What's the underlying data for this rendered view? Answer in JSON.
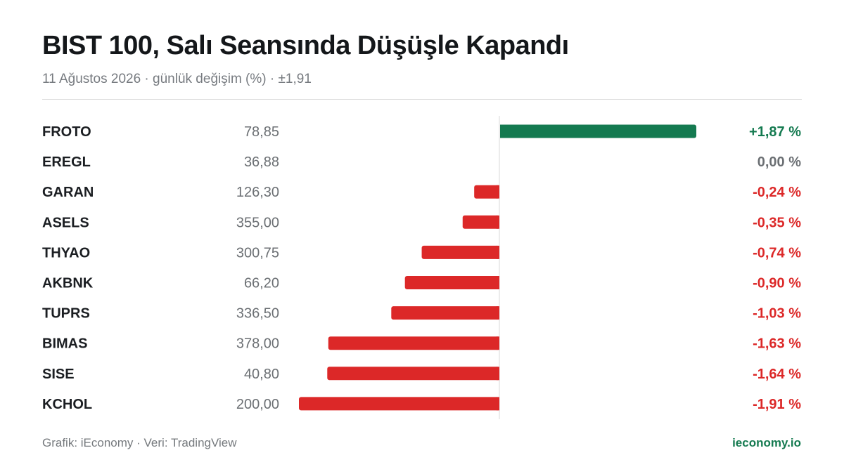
{
  "header": {
    "title": "BIST 100, Salı Seansında Düşüşle Kapandı",
    "subtitle": "11 Ağustos 2026 · günlük değişim (%) · ±1,91"
  },
  "footer": {
    "source": "Grafik: iEconomy · Veri: TradingView",
    "brand": "ieconomy.io"
  },
  "colors": {
    "positive": "#147a50",
    "negative": "#dc2828",
    "neutral": "#6b6f73"
  },
  "chart_data": {
    "type": "bar",
    "orientation": "horizontal",
    "xlim": [
      -1.91,
      1.91
    ],
    "categories": [
      "FROTO",
      "EREGL",
      "GARAN",
      "ASELS",
      "THYAO",
      "AKBNK",
      "TUPRS",
      "BIMAS",
      "SISE",
      "KCHOL"
    ],
    "prices": [
      "78,85",
      "36,88",
      "126,30",
      "355,00",
      "300,75",
      "66,20",
      "336,50",
      "378,00",
      "40,80",
      "200,00"
    ],
    "values": [
      1.87,
      0.0,
      -0.24,
      -0.35,
      -0.74,
      -0.9,
      -1.03,
      -1.63,
      -1.64,
      -1.91
    ],
    "value_labels": [
      "+1,87 %",
      "0,00 %",
      "-0,24 %",
      "-0,35 %",
      "-0,74 %",
      "-0,90 %",
      "-1,03 %",
      "-1,63 %",
      "-1,64 %",
      "-1,91 %"
    ]
  }
}
